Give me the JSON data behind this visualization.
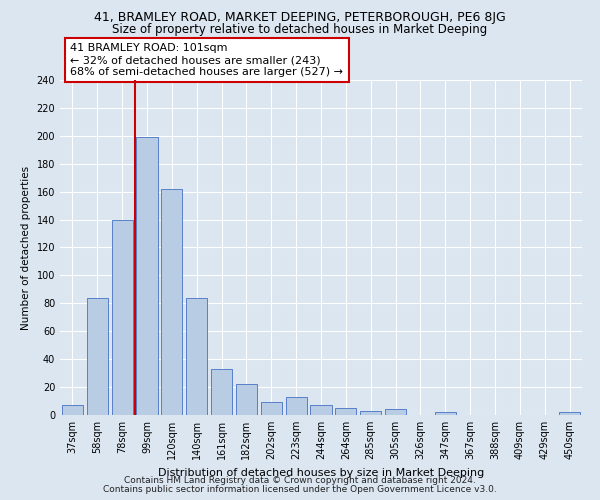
{
  "title": "41, BRAMLEY ROAD, MARKET DEEPING, PETERBOROUGH, PE6 8JG",
  "subtitle": "Size of property relative to detached houses in Market Deeping",
  "xlabel": "Distribution of detached houses by size in Market Deeping",
  "ylabel": "Number of detached properties",
  "categories": [
    "37sqm",
    "58sqm",
    "78sqm",
    "99sqm",
    "120sqm",
    "140sqm",
    "161sqm",
    "182sqm",
    "202sqm",
    "223sqm",
    "244sqm",
    "264sqm",
    "285sqm",
    "305sqm",
    "326sqm",
    "347sqm",
    "367sqm",
    "388sqm",
    "409sqm",
    "429sqm",
    "450sqm"
  ],
  "values": [
    7,
    84,
    140,
    199,
    162,
    84,
    33,
    22,
    9,
    13,
    7,
    5,
    3,
    4,
    0,
    2,
    0,
    0,
    0,
    0,
    2
  ],
  "bar_color": "#b8cce4",
  "bar_edge_color": "#4472c4",
  "vline_index": 3,
  "vline_color": "#cc0000",
  "annotation_line1": "41 BRAMLEY ROAD: 101sqm",
  "annotation_line2": "← 32% of detached houses are smaller (243)",
  "annotation_line3": "68% of semi-detached houses are larger (527) →",
  "annotation_box_color": "#ffffff",
  "annotation_box_edge": "#cc0000",
  "ylim": [
    0,
    240
  ],
  "yticks": [
    0,
    20,
    40,
    60,
    80,
    100,
    120,
    140,
    160,
    180,
    200,
    220,
    240
  ],
  "bg_color": "#dce6f1",
  "plot_bg_color": "#dce6f1",
  "footer_line1": "Contains HM Land Registry data © Crown copyright and database right 2024.",
  "footer_line2": "Contains public sector information licensed under the Open Government Licence v3.0.",
  "title_fontsize": 9,
  "subtitle_fontsize": 8.5,
  "xlabel_fontsize": 8,
  "ylabel_fontsize": 7.5,
  "tick_fontsize": 7,
  "annotation_fontsize": 8,
  "footer_fontsize": 6.5
}
